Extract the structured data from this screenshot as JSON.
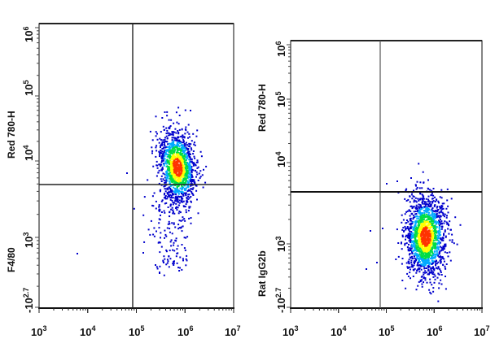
{
  "chart_data": [
    {
      "type": "scatter",
      "subtype": "flow-cytometry-density-dot-plot",
      "title": "",
      "xlabel": "",
      "ylabel_top": "Red 780-H",
      "ylabel_bottom": "F4/80",
      "x_scale": "log",
      "xlim": [
        1000,
        10000000
      ],
      "x_ticks": [
        "10^3",
        "10^4",
        "10^5",
        "10^6",
        "10^7"
      ],
      "y_scale": "biexponential",
      "ylim": [
        -500,
        1000000
      ],
      "y_ticks": [
        "-10^2.7",
        "10^3",
        "10^4",
        "10^5",
        "10^6"
      ],
      "gates": {
        "vertical_x": 80000,
        "horizontal_y": 2500
      },
      "population": {
        "center_x": 600000,
        "center_y": 6000,
        "spread_x_decades": 0.25,
        "spread_y_decades": 0.45,
        "tail": "downward toward y≈10^2.7",
        "density_colors": [
          "#0000cc",
          "#00aaff",
          "#00dd44",
          "#ffff00",
          "#ff3300"
        ]
      },
      "grid": false,
      "legend": null
    },
    {
      "type": "scatter",
      "subtype": "flow-cytometry-density-dot-plot",
      "title": "",
      "xlabel": "",
      "ylabel_top": "Red 780-H",
      "ylabel_bottom": "Rat IgG2b",
      "x_scale": "log",
      "xlim": [
        1000,
        10000000
      ],
      "x_ticks": [
        "10^3",
        "10^4",
        "10^5",
        "10^6",
        "10^7"
      ],
      "y_scale": "biexponential",
      "ylim": [
        -500,
        1000000
      ],
      "y_ticks": [
        "-10^2.7",
        "10^3",
        "10^4",
        "10^5",
        "10^6"
      ],
      "gates": {
        "vertical_x": 80000,
        "horizontal_y": 2500
      },
      "population": {
        "center_x": 600000,
        "center_y": 1200,
        "spread_x_decades": 0.25,
        "spread_y_decades": 0.35,
        "density_colors": [
          "#0000cc",
          "#00aaff",
          "#00dd44",
          "#ffff00",
          "#ff3300"
        ]
      },
      "grid": false,
      "legend": null
    }
  ],
  "left": {
    "ylabel_top": "Red 780-H",
    "ylabel_bottom": "F4/80",
    "yticks": {
      "t6": "10",
      "t6e": "6",
      "t5": "10",
      "t5e": "5",
      "t4": "10",
      "t4e": "4",
      "t3": "10",
      "t3e": "3",
      "tneg": "-10",
      "tnege": "2.7"
    },
    "xticks": [
      {
        "b": "10",
        "e": "3"
      },
      {
        "b": "10",
        "e": "4"
      },
      {
        "b": "10",
        "e": "5"
      },
      {
        "b": "10",
        "e": "6"
      },
      {
        "b": "10",
        "e": "7"
      }
    ]
  },
  "right": {
    "ylabel_top": "Red 780-H",
    "ylabel_bottom": "Rat IgG2b",
    "yticks": {
      "t6": "10",
      "t6e": "6",
      "t5": "10",
      "t5e": "5",
      "t4": "10",
      "t4e": "4",
      "t3": "10",
      "t3e": "3",
      "tneg": "-10",
      "tnege": "2.7"
    },
    "xticks": [
      {
        "b": "10",
        "e": "3"
      },
      {
        "b": "10",
        "e": "4"
      },
      {
        "b": "10",
        "e": "5"
      },
      {
        "b": "10",
        "e": "6"
      },
      {
        "b": "10",
        "e": "7"
      }
    ]
  }
}
